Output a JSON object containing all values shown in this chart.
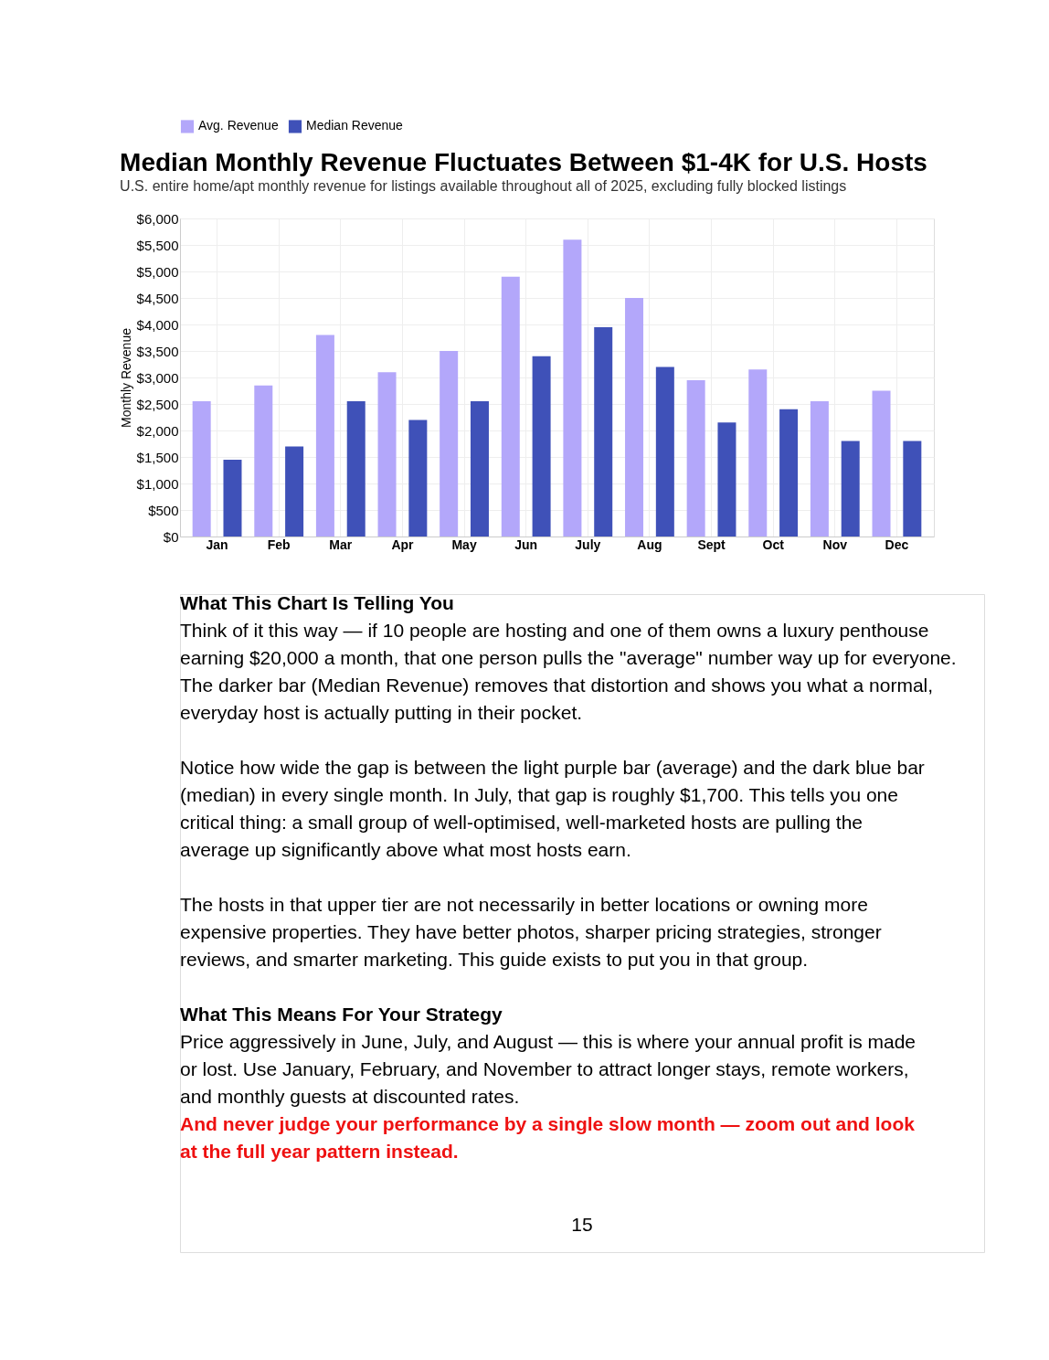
{
  "chart_data": {
    "type": "bar",
    "title": "Median Monthly Revenue Fluctuates Between $1-4K for U.S. Hosts",
    "subtitle": "U.S. entire home/apt monthly revenue for listings available throughout all of 2025, excluding fully blocked listings",
    "ylabel": "Monthly Revenue",
    "categories": [
      "Jan",
      "Feb",
      "Mar",
      "Apr",
      "May",
      "Jun",
      "July",
      "Aug",
      "Sept",
      "Oct",
      "Nov",
      "Dec"
    ],
    "series": [
      {
        "name": "Avg. Revenue",
        "color": "#b3a7fa",
        "values": [
          2550,
          2850,
          3800,
          3100,
          3500,
          4900,
          5600,
          4500,
          2950,
          3150,
          2550,
          2750
        ]
      },
      {
        "name": "Median Revenue",
        "color": "#3f51b8",
        "values": [
          1450,
          1700,
          2550,
          2200,
          2550,
          3400,
          3950,
          3200,
          2150,
          2400,
          1800,
          1800
        ]
      }
    ],
    "ylim": [
      0,
      6000
    ],
    "yticks": [
      {
        "value": 0,
        "label": "$0"
      },
      {
        "value": 500,
        "label": "$500"
      },
      {
        "value": 1000,
        "label": "$1,000"
      },
      {
        "value": 1500,
        "label": "$1,500"
      },
      {
        "value": 2000,
        "label": "$2,000"
      },
      {
        "value": 2500,
        "label": "$2,500"
      },
      {
        "value": 3000,
        "label": "$3,000"
      },
      {
        "value": 3500,
        "label": "$3,500"
      },
      {
        "value": 4000,
        "label": "$4,000"
      },
      {
        "value": 4500,
        "label": "$4,500"
      },
      {
        "value": 5000,
        "label": "$5,000"
      },
      {
        "value": 5500,
        "label": "$5,500"
      },
      {
        "value": 6000,
        "label": "$6,000"
      }
    ],
    "grid": true,
    "legend": "top",
    "annotations": [
      "What This Chart Is Telling You",
      "Think of it this way — if 10 people are hosting and one of them owns a luxury penthouse earning $20,000 a month, that one person pulls the \"average\" number way up for everyone. The darker bar (Median Revenue) removes that distortion and shows you what a normal, everyday host is actually putting in their pocket.",
      "Notice how wide the gap is between the light purple bar (average) and the dark blue bar (median) in every single month. In July, that gap is roughly $1,700. This tells you one critical thing: a small group of well-optimised, well-marketed hosts are pulling the average up significantly above what most hosts earn.",
      "The hosts in that upper tier are not necessarily in better locations or owning more expensive properties. They have better photos, sharper pricing strategies, stronger reviews, and smarter marketing. This guide exists to put you in that group.",
      "What This Means For Your Strategy",
      "Price aggressively in June, July, and August — this is where your annual profit is made or lost. Use January, February, and November to attract longer stays, remote workers, and monthly guests at discounted rates.",
      "And never judge your performance by a single slow month — zoom out and look at the full year pattern instead.",
      "15"
    ]
  }
}
